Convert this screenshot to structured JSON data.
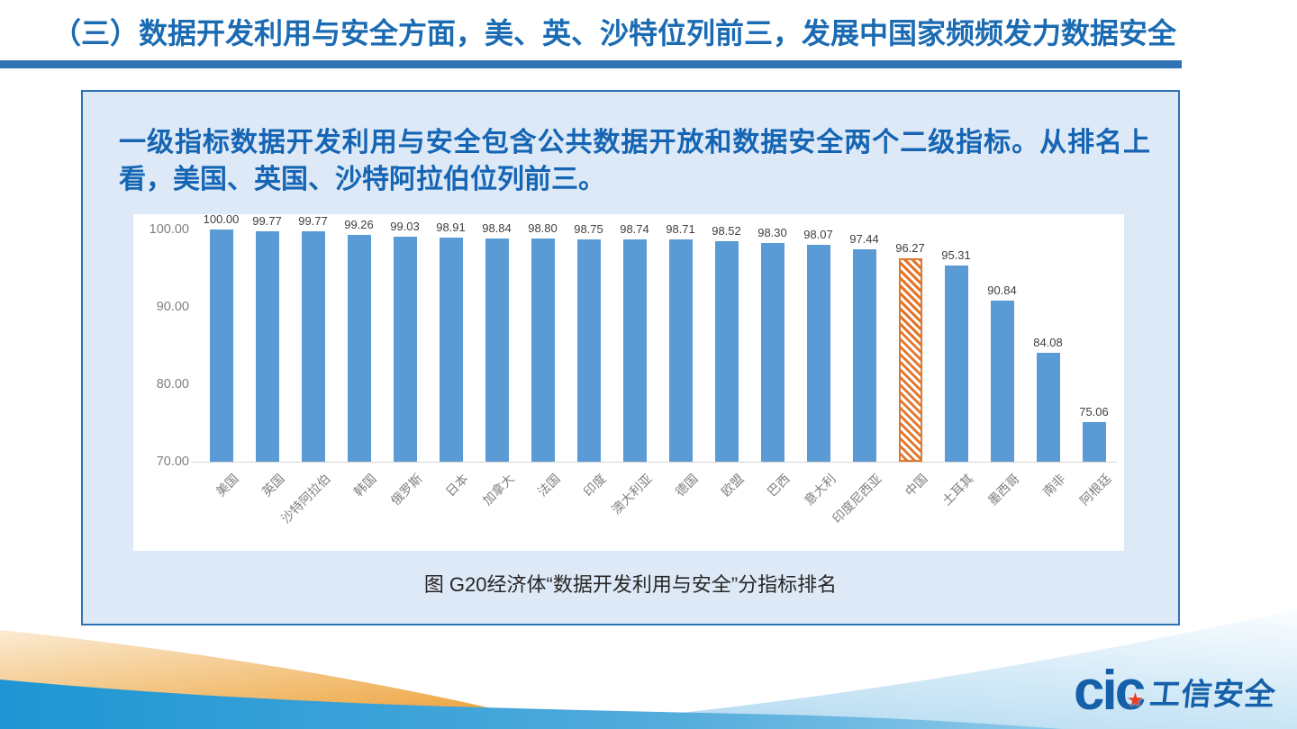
{
  "slide": {
    "title": "（三）数据开发利用与安全方面，美、英、沙特位列前三，发展中国家频频发力数据安全",
    "body_text": "一级指标数据开发利用与安全包含公共数据开放和数据安全两个二级指标。从排名上看，美国、英国、沙特阿拉伯位列前三。",
    "caption": "图  G20经济体“数据开发利用与安全”分指标排名",
    "logo": {
      "brand": "cic",
      "brand_cn": "工信安全",
      "star": "★"
    }
  },
  "colors": {
    "title_blue": "#1b6bb3",
    "body_blue": "#1565b4",
    "bar_blue": "#5b9bd5",
    "highlight_orange": "#e2762b",
    "panel_fill": "#dde9f6",
    "panel_border": "#2e74b5",
    "logo_blue": "#1560a8"
  },
  "chart_data": {
    "type": "bar",
    "title": "图  G20经济体“数据开发利用与安全”分指标排名",
    "categories": [
      "美国",
      "英国",
      "沙特阿拉伯",
      "韩国",
      "俄罗斯",
      "日本",
      "加拿大",
      "法国",
      "印度",
      "澳大利亚",
      "德国",
      "欧盟",
      "巴西",
      "意大利",
      "印度尼西亚",
      "中国",
      "土耳其",
      "墨西哥",
      "南非",
      "阿根廷"
    ],
    "values": [
      100.0,
      99.77,
      99.77,
      99.26,
      99.03,
      98.91,
      98.84,
      98.8,
      98.75,
      98.74,
      98.71,
      98.52,
      98.3,
      98.07,
      97.44,
      96.27,
      95.31,
      90.84,
      84.08,
      75.06
    ],
    "highlight_category": "中国",
    "ylim": [
      70,
      100
    ],
    "yticks": [
      "100.00",
      "90.00",
      "80.00",
      "70.00"
    ],
    "grid": false,
    "value_labels": true,
    "legend": false
  }
}
